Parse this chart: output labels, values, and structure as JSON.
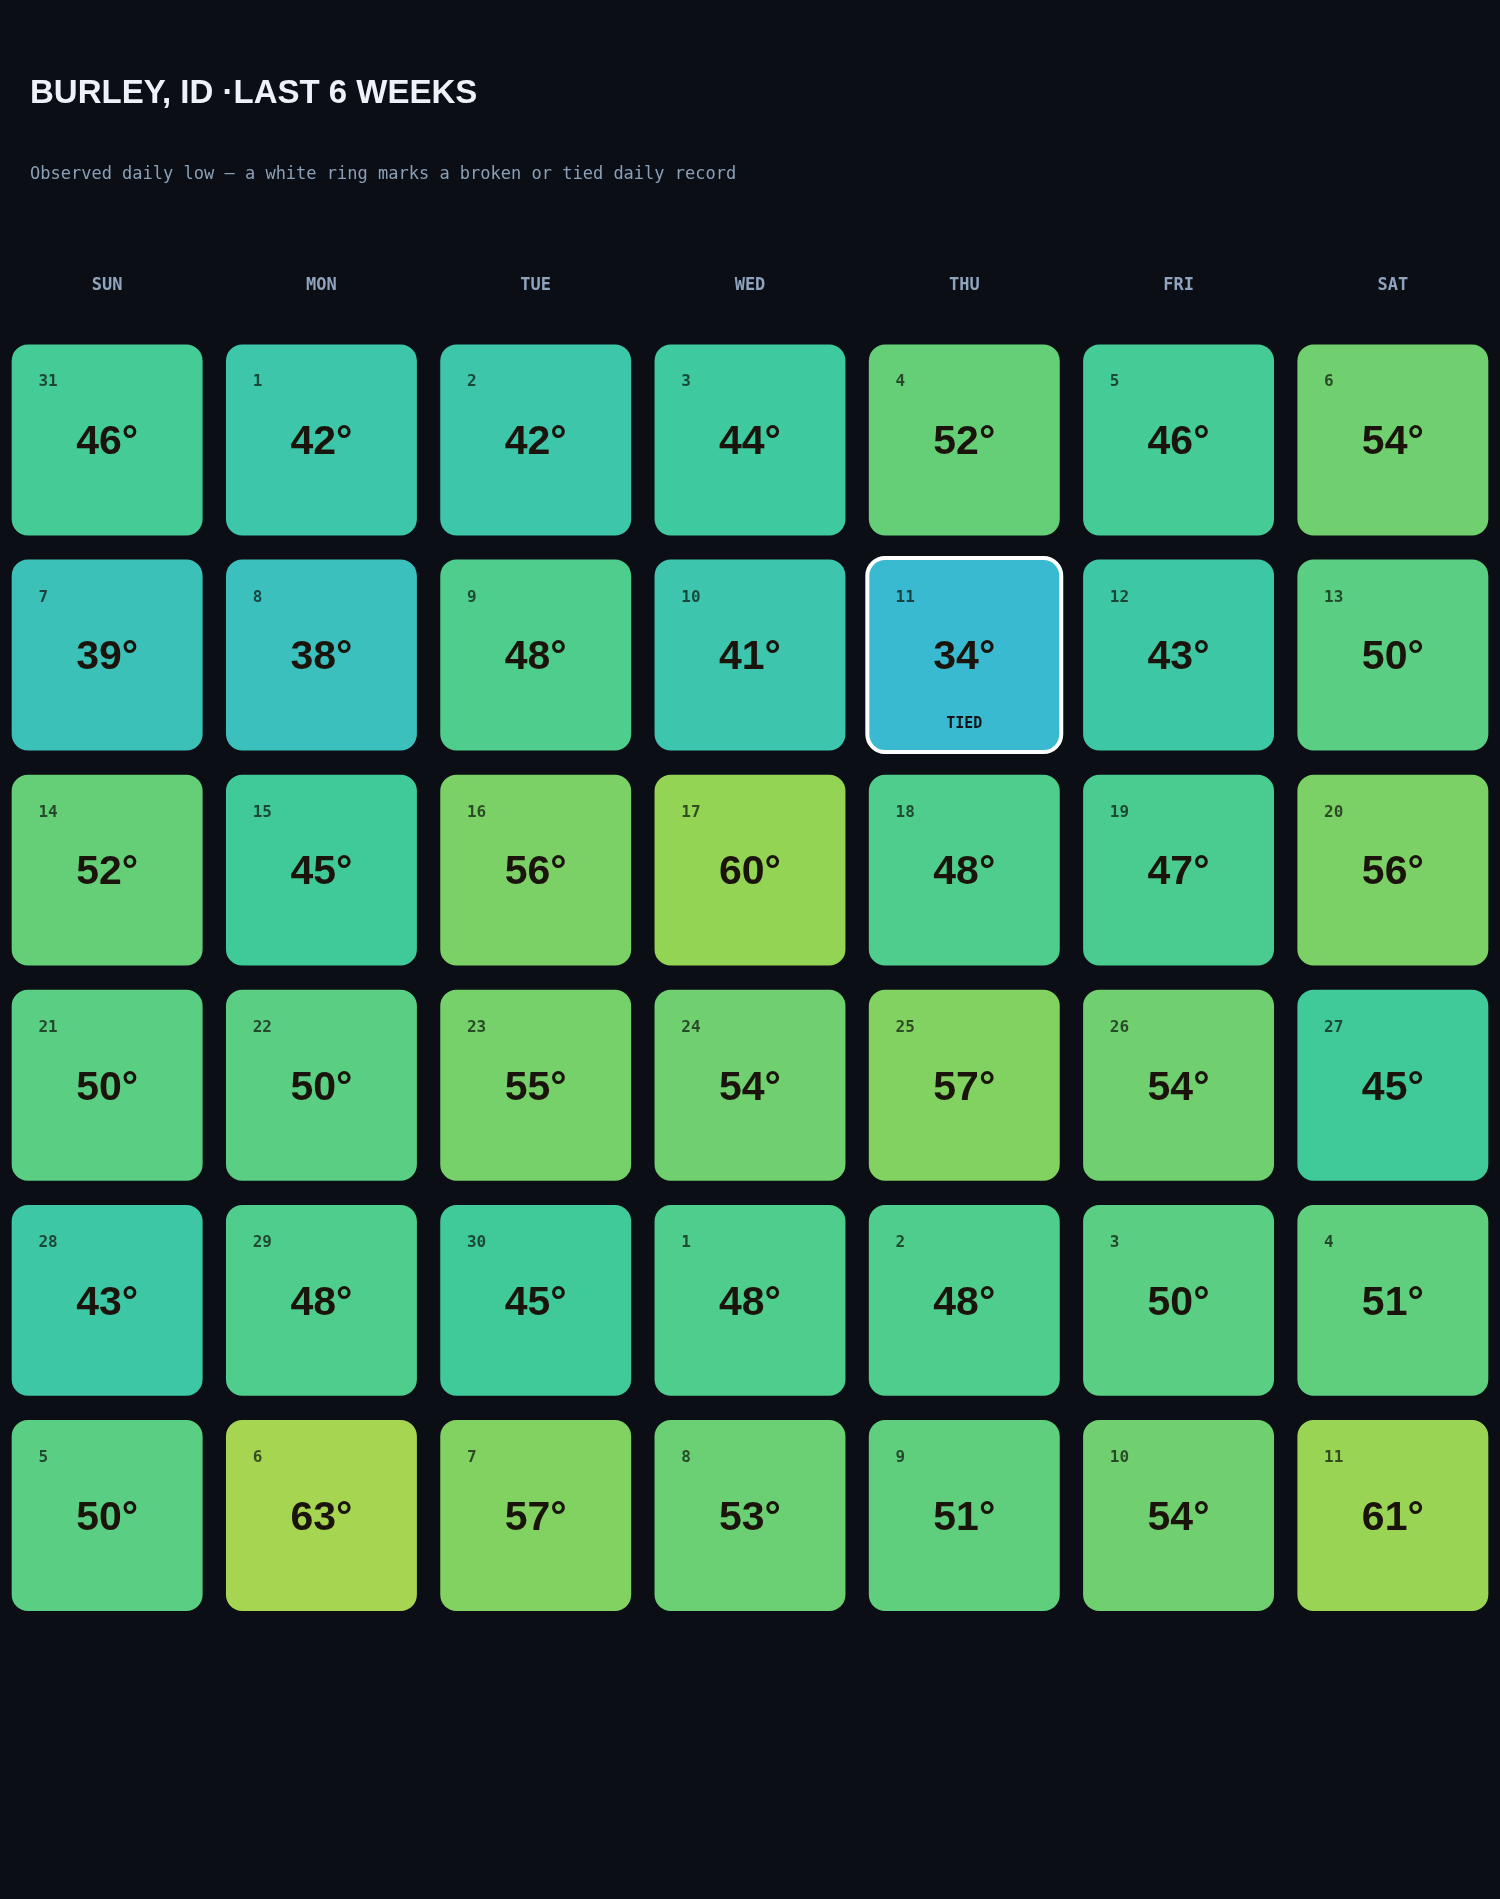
{
  "chart_data": {
    "type": "heatmap",
    "title": "BURLEY, ID ·LAST 6 WEEKS",
    "subtitle": "Observed daily low — a white ring marks a broken or tied daily record",
    "categories": [
      "SUN",
      "MON",
      "TUE",
      "WED",
      "THU",
      "FRI",
      "SAT"
    ],
    "y_categories": [
      null,
      null,
      null,
      null,
      null,
      null
    ],
    "cells": [
      [
        46,
        42,
        42,
        44,
        52,
        46,
        54
      ],
      [
        39,
        38,
        48,
        41,
        34,
        43,
        50
      ],
      [
        52,
        45,
        56,
        60,
        48,
        47,
        56
      ],
      [
        50,
        50,
        55,
        54,
        57,
        54,
        45
      ],
      [
        43,
        48,
        45,
        48,
        48,
        50,
        51
      ],
      [
        50,
        63,
        57,
        53,
        51,
        54,
        61
      ]
    ],
    "cell_labels": [
      [
        "46°",
        "42°",
        "42°",
        "44°",
        "52°",
        "46°",
        "54°"
      ],
      [
        "39°",
        "38°",
        "48°",
        "41°",
        "34°\nTIED",
        "43°",
        "50°"
      ],
      [
        "52°",
        "45°",
        "56°",
        "60°",
        "48°",
        "47°",
        "56°"
      ],
      [
        "50°",
        "50°",
        "55°",
        "54°",
        "57°",
        "54°",
        "45°"
      ],
      [
        "43°",
        "48°",
        "45°",
        "48°",
        "48°",
        "50°",
        "51°"
      ],
      [
        "50°",
        "63°",
        "57°",
        "53°",
        "51°",
        "54°",
        "61°"
      ]
    ],
    "annotations": [
      "31",
      "1",
      "2",
      "3",
      "4",
      "5",
      "6",
      "7",
      "8",
      "9",
      "10",
      "11",
      "12",
      "13",
      "14",
      "15",
      "16",
      "17",
      "18",
      "19",
      "20",
      "21",
      "22",
      "23",
      "24",
      "25",
      "26",
      "27",
      "28",
      "29",
      "30",
      "1",
      "2",
      "3",
      "4",
      "5",
      "6",
      "7",
      "8",
      "9",
      "10",
      "11"
    ],
    "colors": [
      "#3abad0",
      "#3bbfc0",
      "#3dc5ad",
      "#3fca9a",
      "#51cd8a",
      "#66cf77",
      "#7ad167",
      "#90d356",
      "#a6d651"
    ],
    "tick_labels": "x"
  }
}
